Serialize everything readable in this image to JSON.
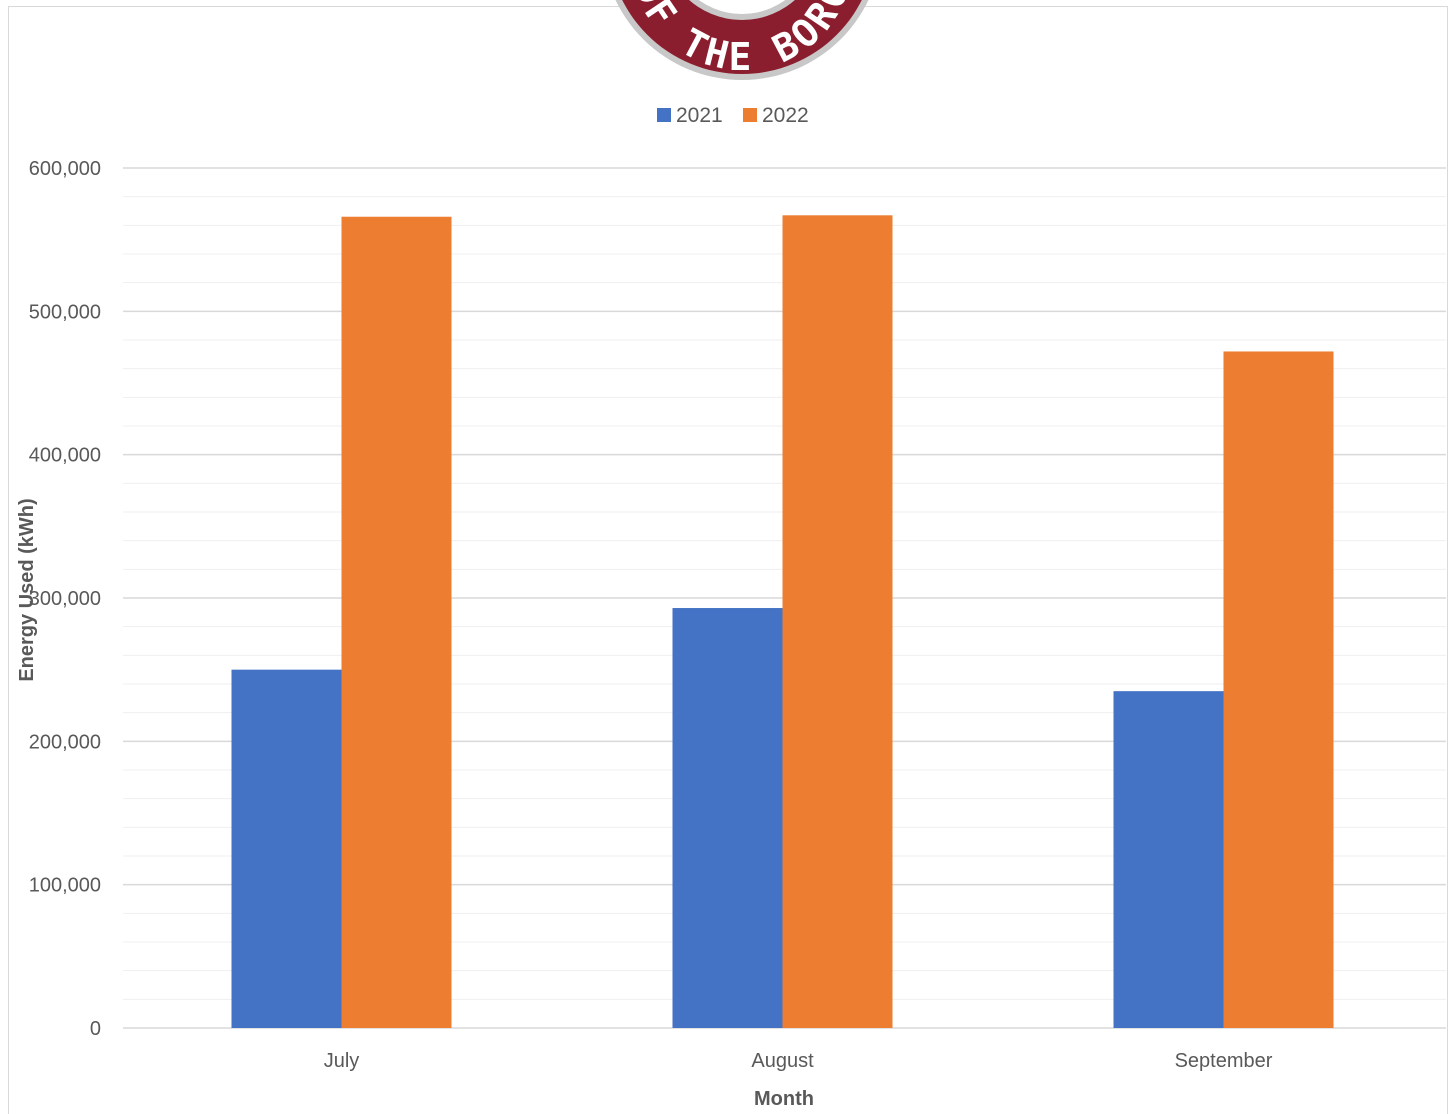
{
  "chart_data": {
    "type": "bar",
    "categories": [
      "July",
      "August",
      "September"
    ],
    "series": [
      {
        "name": "2021",
        "color": "#4472C4",
        "values": [
          250000,
          293000,
          235000
        ]
      },
      {
        "name": "2022",
        "color": "#ED7D31",
        "values": [
          566000,
          567000,
          472000
        ]
      }
    ],
    "xlabel": "Month",
    "ylabel": "Energy Used (kWh)",
    "ylim": [
      0,
      600000
    ],
    "ytick_step": 100000,
    "minor_tick_step": 20000,
    "yticks": [
      "0",
      "100,000",
      "200,000",
      "300,000",
      "400,000",
      "500,000",
      "600,000"
    ],
    "grid": true,
    "legend_position": "top-center"
  },
  "logo": {
    "icon": "borough-seal-icon",
    "text": "OF THE BORO",
    "ring_color": "#8B1E2E",
    "rim_color": "#BFBFBF"
  }
}
